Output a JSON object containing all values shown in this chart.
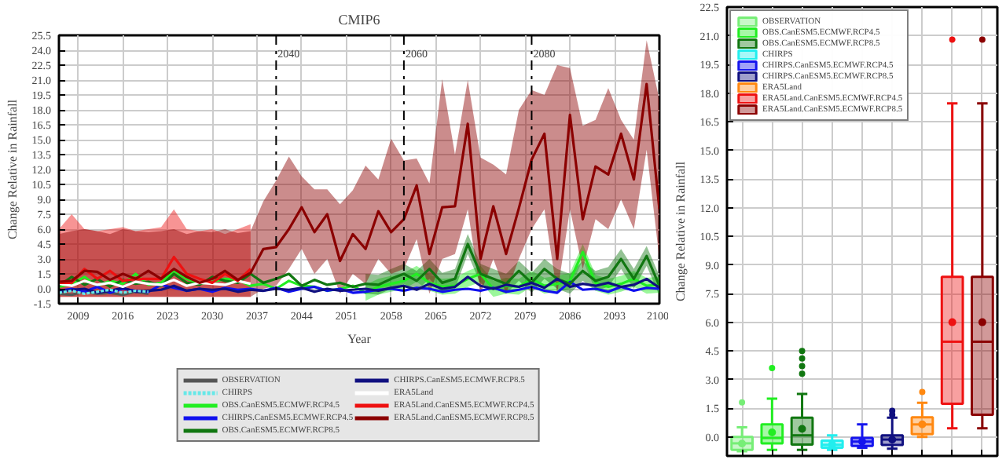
{
  "chart_data": [
    {
      "type": "line",
      "title": "CMIP6",
      "xlabel": "Year",
      "ylabel": "Change Relative in Rainfall",
      "xlim": [
        2006,
        2100
      ],
      "xticks": [
        2009,
        2016,
        2023,
        2030,
        2037,
        2044,
        2051,
        2058,
        2065,
        2072,
        2079,
        2086,
        2093,
        2100
      ],
      "ylim": [
        -1.5,
        25.5
      ],
      "yticks": [
        -1.5,
        {
          "value": 0,
          "label": "0.0"
        },
        1.5,
        {
          "value": 3,
          "label": "3.0"
        },
        4.5,
        {
          "value": 6,
          "label": "6.0"
        },
        7.5,
        {
          "value": 9,
          "label": "9.0"
        },
        10.5,
        {
          "value": 12,
          "label": "12.0"
        },
        13.5,
        {
          "value": 15,
          "label": "15.0"
        },
        16.5,
        {
          "value": 18,
          "label": "18.0"
        },
        19.5,
        {
          "value": 21,
          "label": "21.0"
        },
        22.5,
        {
          "value": 24,
          "label": "24.0"
        },
        25.5
      ],
      "grid": true,
      "legend": "bottom",
      "ref_lines": [
        {
          "axis": "x",
          "value": 2040,
          "label": "2040",
          "line_style": "dashdot"
        },
        {
          "axis": "x",
          "value": 2060,
          "label": "2060",
          "line_style": "dashdot"
        },
        {
          "axis": "x",
          "value": 2080,
          "label": "2080",
          "line_style": "dashdot"
        }
      ],
      "series": [
        {
          "name": "OBSERVATION",
          "color": "#555555",
          "x": [
            2006,
            2008,
            2010,
            2012,
            2014,
            2016,
            2018,
            2020
          ],
          "values": [
            -0.5,
            -0.6,
            -0.3,
            -0.5,
            -0.4,
            -0.6,
            -0.3,
            -0.5
          ]
        },
        {
          "name": "CHIRPS",
          "color": "#66e8e8",
          "line_style": "dashed",
          "x": [
            2006,
            2008,
            2010,
            2012,
            2014,
            2016,
            2018,
            2020
          ],
          "values": [
            -0.4,
            -0.2,
            -0.5,
            -0.3,
            -0.1,
            -0.4,
            -0.2,
            -0.3
          ]
        },
        {
          "name": "OBS.CanESM5.ECMWF.RCP4.5",
          "color": "#22ee22",
          "x": [
            2006,
            2008,
            2010,
            2012,
            2014,
            2016,
            2018,
            2020,
            2022,
            2024,
            2026,
            2028,
            2030,
            2032,
            2034,
            2036,
            2038,
            2040,
            2042,
            2044,
            2046,
            2048,
            2050,
            2052,
            2054,
            2056,
            2058,
            2060,
            2062,
            2064,
            2066,
            2068,
            2070,
            2072,
            2074,
            2076,
            2078,
            2080,
            2082,
            2084,
            2086,
            2088,
            2090,
            2092,
            2094,
            2096,
            2098,
            2100
          ],
          "values": [
            0.2,
            0.5,
            1.2,
            0.3,
            0.8,
            0.5,
            1.5,
            0.4,
            0.6,
            1.8,
            1.0,
            0.5,
            0.7,
            1.0,
            0.9,
            0.3,
            0.5,
            0.0,
            0.8,
            0.3,
            0.2,
            -0.2,
            0.0,
            0.3,
            -0.4,
            0.2,
            0.5,
            0.8,
            1.5,
            0.6,
            0.2,
            0.3,
            1.0,
            1.5,
            0.0,
            0.3,
            0.2,
            1.0,
            0.3,
            0.5,
            0.8,
            3.7,
            0.6,
            0.2,
            0.5,
            1.0,
            0.3,
            0.4
          ],
          "lower": [
            null,
            null,
            null,
            null,
            null,
            null,
            null,
            null,
            null,
            null,
            null,
            null,
            null,
            null,
            null,
            null,
            null,
            null,
            null,
            null,
            null,
            null,
            null,
            null,
            -1.2,
            -0.6,
            -0.3,
            0.0,
            0.7,
            -0.2,
            -0.6,
            -0.5,
            0.2,
            0.7,
            -0.8,
            -0.5,
            -0.6,
            0.2,
            -0.5,
            -0.3,
            0.0,
            2.9,
            -0.2,
            -0.6,
            -0.3,
            0.2,
            -0.5,
            -0.4
          ],
          "upper": [
            null,
            null,
            null,
            null,
            null,
            null,
            null,
            null,
            null,
            null,
            null,
            null,
            null,
            null,
            null,
            null,
            null,
            null,
            null,
            null,
            null,
            null,
            null,
            null,
            0.4,
            1.0,
            1.3,
            1.6,
            2.3,
            1.4,
            1.0,
            1.1,
            1.8,
            2.3,
            0.8,
            1.1,
            1.0,
            1.8,
            1.1,
            1.3,
            1.6,
            4.5,
            1.4,
            1.0,
            1.3,
            1.8,
            1.1,
            1.2
          ]
        },
        {
          "name": "CHIRPS.CanESM5.ECMWF.RCP4.5",
          "color": "#1010ee",
          "x": [
            2006,
            2008,
            2010,
            2012,
            2014,
            2016,
            2018,
            2020,
            2022,
            2024,
            2026,
            2028,
            2030,
            2032,
            2034,
            2036,
            2038,
            2040,
            2042,
            2044,
            2046,
            2048,
            2050,
            2052,
            2054,
            2056,
            2058,
            2060,
            2062,
            2064,
            2066,
            2068,
            2070,
            2072,
            2074,
            2076,
            2078,
            2080,
            2082,
            2084,
            2086,
            2088,
            2090,
            2092,
            2094,
            2096,
            2098,
            2100
          ],
          "values": [
            -0.2,
            0.0,
            -0.3,
            0.2,
            -0.4,
            0.0,
            -0.2,
            -0.3,
            0.4,
            0.1,
            -0.2,
            0.0,
            -0.3,
            0.1,
            -0.1,
            0.0,
            -0.2,
            0.1,
            -0.3,
            0.0,
            0.2,
            -0.2,
            0.0,
            -0.4,
            -0.3,
            -0.1,
            0.0,
            -0.2,
            0.1,
            0.0,
            -0.3,
            -0.1,
            0.0,
            -0.2,
            0.1,
            -0.3,
            -0.1,
            0.2,
            -0.2,
            -0.4,
            0.7,
            -0.1,
            0.0,
            -0.3,
            0.2,
            -0.2,
            0.1,
            0.0
          ]
        },
        {
          "name": "OBS.CanESM5.ECMWF.RCP8.5",
          "color": "#117711",
          "x": [
            2006,
            2008,
            2010,
            2012,
            2014,
            2016,
            2018,
            2020,
            2022,
            2024,
            2026,
            2028,
            2030,
            2032,
            2034,
            2036,
            2038,
            2040,
            2042,
            2044,
            2046,
            2048,
            2050,
            2052,
            2054,
            2056,
            2058,
            2060,
            2062,
            2064,
            2066,
            2068,
            2070,
            2072,
            2074,
            2076,
            2078,
            2080,
            2082,
            2084,
            2086,
            2088,
            2090,
            2092,
            2094,
            2096,
            2098,
            2100
          ],
          "values": [
            0.3,
            1.2,
            0.4,
            1.0,
            0.2,
            0.9,
            0.5,
            0.7,
            0.3,
            1.5,
            0.6,
            0.4,
            1.2,
            0.8,
            0.6,
            1.5,
            0.6,
            1.0,
            1.5,
            0.3,
            0.9,
            0.4,
            0.6,
            0.2,
            0.5,
            0.4,
            1.0,
            1.5,
            0.8,
            2.0,
            0.6,
            1.0,
            4.5,
            1.5,
            1.0,
            0.5,
            1.8,
            0.6,
            2.0,
            1.0,
            0.5,
            1.8,
            0.8,
            1.2,
            3.0,
            1.0,
            3.3,
            0.3
          ],
          "lower": [
            null,
            null,
            null,
            null,
            null,
            null,
            null,
            null,
            null,
            null,
            null,
            null,
            null,
            null,
            null,
            null,
            null,
            null,
            null,
            null,
            null,
            null,
            null,
            null,
            -0.5,
            -0.6,
            0.0,
            0.5,
            -0.2,
            1.0,
            -0.4,
            0.0,
            3.5,
            0.5,
            0.0,
            -0.5,
            0.8,
            -0.4,
            1.0,
            0.0,
            -0.5,
            0.8,
            -0.2,
            0.2,
            2.0,
            0.0,
            2.3,
            -0.7
          ],
          "upper": [
            null,
            null,
            null,
            null,
            null,
            null,
            null,
            null,
            null,
            null,
            null,
            null,
            null,
            null,
            null,
            null,
            null,
            null,
            null,
            null,
            null,
            null,
            null,
            null,
            1.5,
            1.4,
            2.0,
            2.5,
            1.8,
            3.0,
            1.6,
            2.0,
            5.5,
            2.5,
            2.0,
            1.5,
            2.8,
            1.6,
            3.0,
            2.0,
            1.5,
            2.8,
            1.8,
            2.2,
            4.0,
            2.0,
            4.3,
            1.3
          ]
        },
        {
          "name": "CHIRPS.CanESM5.ECMWF.RCP8.5",
          "color": "#101080",
          "x": [
            2006,
            2008,
            2010,
            2012,
            2014,
            2016,
            2018,
            2020,
            2022,
            2024,
            2026,
            2028,
            2030,
            2032,
            2034,
            2036,
            2038,
            2040,
            2042,
            2044,
            2046,
            2048,
            2050,
            2052,
            2054,
            2056,
            2058,
            2060,
            2062,
            2064,
            2066,
            2068,
            2070,
            2072,
            2074,
            2076,
            2078,
            2080,
            2082,
            2084,
            2086,
            2088,
            2090,
            2092,
            2094,
            2096,
            2098,
            2100
          ],
          "values": [
            -0.3,
            -0.1,
            0.0,
            -0.4,
            -0.2,
            0.1,
            -0.3,
            -0.2,
            -0.1,
            0.3,
            -0.2,
            0.0,
            -0.1,
            0.0,
            -0.3,
            -0.1,
            -0.2,
            0.0,
            -0.1,
            0.1,
            -0.3,
            0.0,
            -0.2,
            -0.1,
            0.0,
            -0.2,
            0.1,
            0.3,
            -0.1,
            0.5,
            0.0,
            0.2,
            1.2,
            0.3,
            0.0,
            0.4,
            0.2,
            0.6,
            0.1,
            1.0,
            0.2,
            0.5,
            0.3,
            0.6,
            0.2,
            0.4,
            1.0,
            0.1
          ]
        },
        {
          "name": "ERA5Land",
          "color": "#ffffff",
          "x": [
            2006,
            2008,
            2010,
            2012,
            2014,
            2016,
            2018,
            2020,
            2022,
            2024,
            2026,
            2028,
            2030,
            2032,
            2034,
            2036
          ],
          "values": [
            0.5,
            0.3,
            0.8,
            0.4,
            0.6,
            0.2,
            0.7,
            0.5,
            0.4,
            0.9,
            0.3,
            0.6,
            0.5,
            0.4,
            0.8,
            0.5
          ]
        },
        {
          "name": "ERA5Land.CanESM5.ECMWF.RCP4.5",
          "color": "#ee1111",
          "x": [
            2006,
            2008,
            2010,
            2012,
            2014,
            2016,
            2018,
            2020,
            2022,
            2024,
            2026,
            2028,
            2030,
            2032,
            2034,
            2036
          ],
          "values": [
            0.6,
            0.6,
            2.0,
            1.0,
            1.8,
            0.8,
            1.0,
            1.0,
            1.0,
            3.2,
            1.5,
            1.0,
            0.6,
            1.5,
            0.8,
            2.0
          ],
          "lower": [
            -0.8,
            -0.8,
            -0.8,
            -0.8,
            -0.8,
            -0.8,
            -0.8,
            -0.8,
            -0.8,
            -0.8,
            -0.8,
            -0.8,
            -0.8,
            -0.8,
            -0.8,
            -0.8
          ],
          "upper": [
            6.0,
            7.5,
            6.0,
            5.8,
            6.0,
            6.2,
            5.8,
            6.0,
            6.2,
            8.0,
            6.0,
            5.8,
            6.0,
            5.5,
            6.0,
            6.5
          ]
        },
        {
          "name": "ERA5Land.CanESM5.ECMWF.RCP8.5",
          "color": "#8b0000",
          "x": [
            2006,
            2008,
            2010,
            2012,
            2014,
            2016,
            2018,
            2020,
            2022,
            2024,
            2026,
            2028,
            2030,
            2032,
            2034,
            2036,
            2038,
            2040,
            2042,
            2044,
            2046,
            2048,
            2050,
            2052,
            2054,
            2056,
            2058,
            2060,
            2062,
            2064,
            2066,
            2068,
            2070,
            2072,
            2074,
            2076,
            2078,
            2080,
            2082,
            2084,
            2086,
            2088,
            2090,
            2092,
            2094,
            2096,
            2098,
            2100
          ],
          "values": [
            0.7,
            0.8,
            1.8,
            1.7,
            0.9,
            1.5,
            1.0,
            1.8,
            1.0,
            2.0,
            1.2,
            0.6,
            1.0,
            1.8,
            0.9,
            1.6,
            4.0,
            4.2,
            6.0,
            8.2,
            5.7,
            7.5,
            2.8,
            5.5,
            4.0,
            7.8,
            5.7,
            7.0,
            10.4,
            3.5,
            8.2,
            8.3,
            16.6,
            3.0,
            8.3,
            3.5,
            8.1,
            13.0,
            15.6,
            3.0,
            17.5,
            7.0,
            12.3,
            11.5,
            15.6,
            11.0,
            20.6,
            8.0
          ],
          "lower": [
            -0.8,
            -0.8,
            -0.8,
            -0.8,
            -0.8,
            -0.8,
            -0.8,
            -0.8,
            -0.8,
            -0.8,
            -0.8,
            -0.8,
            -0.8,
            -0.8,
            -0.8,
            -0.8,
            0.0,
            0.3,
            2.0,
            4.0,
            1.5,
            3.0,
            -0.5,
            1.5,
            0.5,
            3.0,
            1.5,
            2.0,
            5.0,
            -0.5,
            3.0,
            3.5,
            8.0,
            -0.5,
            3.0,
            -0.5,
            3.0,
            6.0,
            8.0,
            -0.5,
            8.0,
            2.0,
            7.0,
            6.0,
            9.0,
            6.0,
            14.0,
            3.0
          ],
          "upper": [
            5.5,
            5.8,
            6.0,
            5.8,
            5.5,
            6.0,
            5.8,
            5.7,
            5.8,
            6.0,
            5.5,
            5.8,
            5.7,
            6.0,
            5.6,
            5.8,
            8.8,
            10.9,
            13.3,
            11.3,
            10.0,
            10.0,
            8.5,
            9.9,
            12.4,
            11.0,
            15.1,
            12.9,
            13.1,
            10.6,
            21.1,
            13.5,
            21.0,
            13.2,
            12.5,
            11.5,
            18.0,
            20.0,
            19.5,
            22.5,
            22.2,
            16.4,
            17.0,
            20.2,
            17.0,
            15.0,
            25.0,
            19.0
          ]
        }
      ]
    },
    {
      "type": "box",
      "ylabel": "Change Relative in Rainfall",
      "categories": [
        null,
        null,
        null,
        null,
        null,
        null,
        null,
        null,
        null
      ],
      "ylim": [
        -1.0,
        22.5
      ],
      "yticks": [
        {
          "value": 0,
          "label": "0.0"
        },
        1.5,
        {
          "value": 3,
          "label": "3.0"
        },
        4.5,
        {
          "value": 6,
          "label": "6.0"
        },
        7.5,
        {
          "value": 9,
          "label": "9.0"
        },
        10.5,
        {
          "value": 12,
          "label": "12.0"
        },
        13.5,
        {
          "value": 15,
          "label": "15.0"
        },
        16.5,
        {
          "value": 18,
          "label": "18.0"
        },
        19.5,
        {
          "value": 21,
          "label": "21.0"
        },
        22.5
      ],
      "grid": true,
      "legend": "top left",
      "series": [
        {
          "name": "OBSERVATION",
          "color": "#77ee77",
          "boxes": [
            {
              "low": -0.75,
              "q1": -0.68,
              "median": -0.34,
              "q3": 0.0,
              "high": 0.5,
              "mean": -0.35,
              "outliers": [
                1.8
              ]
            },
            null,
            null,
            null,
            null,
            null,
            null,
            null,
            null
          ]
        },
        {
          "name": "OBS.CanESM5.ECMWF.RCP4.5",
          "color": "#22ee22",
          "boxes": [
            null,
            {
              "low": -0.68,
              "q1": -0.34,
              "median": -0.06,
              "q3": 0.65,
              "high": 2.0,
              "mean": 0.23,
              "outliers": [
                3.6
              ]
            },
            null,
            null,
            null,
            null,
            null,
            null,
            null
          ]
        },
        {
          "name": "OBS.CanESM5.ECMWF.RCP8.5",
          "color": "#117711",
          "boxes": [
            null,
            null,
            {
              "low": -0.68,
              "q1": -0.4,
              "median": 0.08,
              "q3": 1.0,
              "high": 2.25,
              "mean": 0.42,
              "outliers": [
                3.3,
                3.7,
                4.1,
                4.5
              ]
            },
            null,
            null,
            null,
            null,
            null,
            null
          ]
        },
        {
          "name": "CHIRPS",
          "color": "#22eeee",
          "boxes": [
            null,
            null,
            null,
            {
              "low": -0.68,
              "q1": -0.57,
              "median": -0.42,
              "q3": -0.2,
              "high": 0.08,
              "mean": -0.4
            },
            null,
            null,
            null,
            null,
            null
          ]
        },
        {
          "name": "CHIRPS.CanESM5.ECMWF.RCP4.5",
          "color": "#1515ee",
          "boxes": [
            null,
            null,
            null,
            null,
            {
              "low": -0.57,
              "q1": -0.48,
              "median": -0.25,
              "q3": -0.06,
              "high": 0.65,
              "mean": -0.25
            },
            null,
            null,
            null,
            null
          ]
        },
        {
          "name": "CHIRPS.CanESM5.ECMWF.RCP8.5",
          "color": "#101080",
          "boxes": [
            null,
            null,
            null,
            null,
            null,
            {
              "low": -0.62,
              "q1": -0.42,
              "median": -0.14,
              "q3": 0.08,
              "high": 1.0,
              "mean": -0.15,
              "outliers": [
                1.16,
                1.36
              ]
            },
            null,
            null,
            null
          ]
        },
        {
          "name": "ERA5Land",
          "color": "#ff8811",
          "boxes": [
            null,
            null,
            null,
            null,
            null,
            null,
            {
              "low": 0.0,
              "q1": 0.14,
              "median": 0.65,
              "q3": 1.02,
              "high": 1.78,
              "mean": 0.65,
              "outliers": [
                2.35
              ]
            },
            null,
            null
          ]
        },
        {
          "name": "ERA5Land.CanESM5.ECMWF.RCP4.5",
          "color": "#ee1111",
          "boxes": [
            null,
            null,
            null,
            null,
            null,
            null,
            null,
            {
              "low": 0.45,
              "q1": 1.73,
              "median": 4.98,
              "q3": 8.38,
              "high": 17.46,
              "mean": 6.0,
              "outliers": [
                20.8
              ]
            },
            null
          ]
        },
        {
          "name": "ERA5Land.CanESM5.ECMWF.RCP8.5",
          "color": "#8b0000",
          "boxes": [
            null,
            null,
            null,
            null,
            null,
            null,
            null,
            null,
            {
              "low": 0.45,
              "q1": 1.16,
              "median": 4.98,
              "q3": 8.38,
              "high": 17.46,
              "mean": 6.0,
              "outliers": [
                20.8
              ]
            }
          ]
        }
      ]
    }
  ]
}
